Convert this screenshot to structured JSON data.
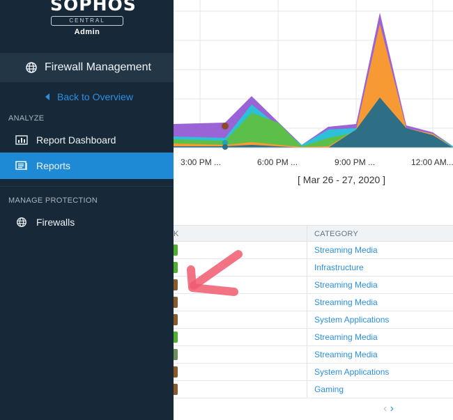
{
  "brand": {
    "logo": "SOPHOS",
    "sub": "CENTRAL",
    "role": "Admin"
  },
  "sidebar": {
    "module": "Firewall Management",
    "back_link": "Back to Overview",
    "sections": [
      {
        "title": "ANALYZE",
        "items": [
          {
            "label": "Report Dashboard",
            "icon": "report-dashboard-icon",
            "active": false
          },
          {
            "label": "Reports",
            "icon": "reports-icon",
            "active": true
          }
        ]
      },
      {
        "title": "MANAGE PROTECTION",
        "items": [
          {
            "label": "Firewalls",
            "icon": "globe-icon",
            "active": false
          }
        ]
      }
    ]
  },
  "chart": {
    "x_ticks": [
      "3:00 PM ...",
      "6:00 PM ...",
      "9:00 PM ...",
      "12:00 AM..."
    ],
    "date_range": "[ Mar 26 - 27, 2020 ]"
  },
  "table": {
    "header_left": "K",
    "header_category": "CATEGORY",
    "rows": [
      {
        "risk_color": "#4caf2e",
        "category": "Streaming Media"
      },
      {
        "risk_color": "#4caf2e",
        "category": "Infrastructure"
      },
      {
        "risk_color": "#8a5a2b",
        "category": "Streaming Media"
      },
      {
        "risk_color": "#8a5a2b",
        "category": "Streaming Media"
      },
      {
        "risk_color": "#8a5a2b",
        "category": "System Applications"
      },
      {
        "risk_color": "#4caf2e",
        "category": "Streaming Media"
      },
      {
        "risk_color": "#6d8f5e",
        "category": "Streaming Media"
      },
      {
        "risk_color": "#8a5a2b",
        "category": "System Applications"
      },
      {
        "risk_color": "#8a5a2b",
        "category": "Gaming"
      }
    ]
  },
  "pager": {
    "prev": "‹",
    "next": "›"
  },
  "colors": {
    "sidebar_bg": "#172938",
    "active": "#1e8ad6",
    "link": "#2b8fe0",
    "annotation": "#f05a6e"
  }
}
